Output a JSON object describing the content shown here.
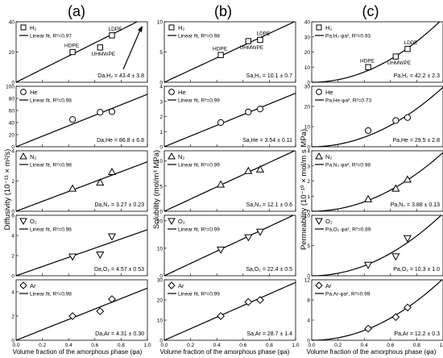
{
  "figure": {
    "column_labels": [
      "(a)",
      "(b)",
      "(c)"
    ],
    "ylabels": [
      "Diffusivity (10⁻¹¹ × m²/s)",
      "Solubility (mol/m³ MPa)",
      "Permeability (10⁻¹⁰ × mol/m s MPa)"
    ],
    "xlabel": "Volume fraction of the amorphous phase (φa)"
  },
  "chart_data": [
    {
      "type": "scatter",
      "column": 0,
      "row": 0,
      "gas": "H₂",
      "fit_label": "Linear fit, R²=0.97",
      "fit_kind": "linear",
      "ylim": [
        0,
        40
      ],
      "yticks": [
        0,
        20,
        40
      ],
      "x": [
        0.43,
        0.64,
        0.73
      ],
      "y": [
        20,
        23,
        31
      ],
      "slope": 43.4,
      "annotation": "Da,H₂ = 43.4 ± 3.8",
      "point_labels": [
        "HDPE",
        "UHMWPE",
        "LDPE"
      ],
      "marker": "square",
      "arrow": true
    },
    {
      "type": "scatter",
      "column": 0,
      "row": 1,
      "gas": "He",
      "fit_label": "Linear fit, R²=0.98",
      "fit_kind": "linear",
      "ylim": [
        0,
        100
      ],
      "yticks": [
        0,
        20,
        40,
        60,
        80,
        100
      ],
      "x": [
        0.43,
        0.64,
        0.73
      ],
      "y": [
        45,
        57,
        58
      ],
      "slope": 86.8,
      "annotation": "Da,He = 86.8 ± 6.8",
      "marker": "circle"
    },
    {
      "type": "scatter",
      "column": 0,
      "row": 2,
      "gas": "N₂",
      "fit_label": "Linear fit, R²=0.98",
      "fit_kind": "linear",
      "ylim": [
        0,
        4
      ],
      "yticks": [
        0,
        2,
        4
      ],
      "x": [
        0.43,
        0.64,
        0.73
      ],
      "y": [
        1.5,
        1.9,
        2.6
      ],
      "slope": 3.27,
      "annotation": "Da,N₂ = 3.27 ± 0.23",
      "marker": "triangle"
    },
    {
      "type": "scatter",
      "column": 0,
      "row": 3,
      "gas": "O₂",
      "fit_label": "Linear fit, R²=0.96",
      "fit_kind": "linear",
      "ylim": [
        0,
        6
      ],
      "yticks": [
        0,
        2,
        4,
        6
      ],
      "x": [
        0.43,
        0.64,
        0.73
      ],
      "y": [
        1.9,
        2.1,
        3.9
      ],
      "slope": 4.57,
      "annotation": "Da,O₂ = 4.57 ± 0.53",
      "marker": "triangle-down"
    },
    {
      "type": "scatter",
      "column": 0,
      "row": 4,
      "gas": "Ar",
      "fit_label": "Linear fit, R²=0.98",
      "fit_kind": "linear",
      "ylim": [
        0,
        5
      ],
      "yticks": [
        0,
        2,
        4
      ],
      "x": [
        0.43,
        0.64,
        0.73
      ],
      "y": [
        2.0,
        2.4,
        3.4
      ],
      "slope": 4.31,
      "annotation": "Da,Ar = 4.31 ± 0.30",
      "marker": "diamond"
    },
    {
      "type": "scatter",
      "column": 1,
      "row": 0,
      "gas": "H₂",
      "fit_label": "Linear fit, R²=0.98",
      "fit_kind": "linear",
      "ylim": [
        0,
        10
      ],
      "yticks": [
        0,
        5,
        10
      ],
      "x": [
        0.43,
        0.64,
        0.73
      ],
      "y": [
        4.5,
        6.8,
        7.0
      ],
      "slope": 10.1,
      "annotation": "Sa,H₂ = 10.1 ± 0.7",
      "point_labels": [
        "HDPE",
        "UHMWPE",
        "LDPE"
      ],
      "marker": "square"
    },
    {
      "type": "scatter",
      "column": 1,
      "row": 1,
      "gas": "He",
      "fit_label": "Linear fit, R²=0.99",
      "fit_kind": "linear",
      "ylim": [
        0,
        4
      ],
      "yticks": [
        0,
        1,
        2,
        3,
        4
      ],
      "x": [
        0.43,
        0.64,
        0.73
      ],
      "y": [
        1.6,
        2.3,
        2.5
      ],
      "slope": 3.54,
      "annotation": "Sa,He = 3.54 ± 0.11",
      "marker": "circle"
    },
    {
      "type": "scatter",
      "column": 1,
      "row": 2,
      "gas": "N₂",
      "fit_label": "Linear fit, R²=0.99",
      "fit_kind": "linear",
      "ylim": [
        0,
        12
      ],
      "yticks": [
        0,
        5,
        10
      ],
      "x": [
        0.43,
        0.64,
        0.73
      ],
      "y": [
        5.3,
        8.0,
        8.3
      ],
      "slope": 12.1,
      "annotation": "Sa,N₂ = 12.1 ± 0.6",
      "marker": "triangle"
    },
    {
      "type": "scatter",
      "column": 1,
      "row": 3,
      "gas": "O₂",
      "fit_label": "Linear fit, R²=0.99",
      "fit_kind": "linear",
      "ylim": [
        0,
        22
      ],
      "yticks": [
        0,
        10,
        20
      ],
      "x": [
        0.43,
        0.64,
        0.73
      ],
      "y": [
        9.5,
        14,
        16
      ],
      "slope": 22.4,
      "annotation": "Sa,O₂ = 22.4 ± 0.5",
      "marker": "triangle-down"
    },
    {
      "type": "scatter",
      "column": 1,
      "row": 4,
      "gas": "Ar",
      "fit_label": "Linear fit, R²=0.99",
      "fit_kind": "linear",
      "ylim": [
        0,
        30
      ],
      "yticks": [
        0,
        10,
        20,
        30
      ],
      "x": [
        0.43,
        0.64,
        0.73
      ],
      "y": [
        12,
        19,
        20
      ],
      "slope": 28.7,
      "annotation": "Sa,Ar = 28.7 ± 1.4",
      "marker": "diamond"
    },
    {
      "type": "scatter",
      "column": 2,
      "row": 0,
      "gas": "H₂",
      "fit_label": "Pa,H₂·φa², R²=0.93",
      "fit_kind": "quadratic",
      "ylim": [
        0,
        40
      ],
      "yticks": [
        0,
        10,
        20,
        30,
        40
      ],
      "x": [
        0.43,
        0.64,
        0.73
      ],
      "y": [
        10,
        17,
        22
      ],
      "slope": 42.2,
      "annotation": "Pa,H₂ = 42.2 ± 2.3",
      "point_labels": [
        "HDPE",
        "UHMWPE",
        "LDPE"
      ],
      "marker": "square"
    },
    {
      "type": "scatter",
      "column": 2,
      "row": 1,
      "gas": "He",
      "fit_label": "Pa,He·φa², R²=0.73",
      "fit_kind": "quadratic",
      "ylim": [
        0,
        30
      ],
      "yticks": [
        0,
        10,
        20,
        30
      ],
      "x": [
        0.43,
        0.64,
        0.73
      ],
      "y": [
        8,
        13,
        14.5
      ],
      "slope": 29.5,
      "annotation": "Pa,He = 29.5 ± 2.8",
      "marker": "circle"
    },
    {
      "type": "scatter",
      "column": 2,
      "row": 2,
      "gas": "N₂",
      "fit_label": "Pa,N₂·φa², R²=0.98",
      "fit_kind": "quadratic",
      "ylim": [
        0,
        4
      ],
      "yticks": [
        0,
        1,
        2,
        3,
        4
      ],
      "x": [
        0.43,
        0.64,
        0.73
      ],
      "y": [
        0.8,
        1.5,
        2.1
      ],
      "slope": 3.88,
      "annotation": "Pa,N₂ = 3.88 ± 0.13",
      "marker": "triangle"
    },
    {
      "type": "scatter",
      "column": 2,
      "row": 3,
      "gas": "O₂",
      "fit_label": "Pa,O₂·φa², R²=0.89",
      "fit_kind": "quadratic",
      "ylim": [
        0,
        10
      ],
      "yticks": [
        0,
        5,
        10
      ],
      "x": [
        0.43,
        0.64,
        0.73
      ],
      "y": [
        1.8,
        3.2,
        6.2
      ],
      "slope": 10.3,
      "annotation": "Pa,O₂ = 10.3 ± 1.0",
      "marker": "triangle-down"
    },
    {
      "type": "scatter",
      "column": 2,
      "row": 4,
      "gas": "Ar",
      "fit_label": "Pa,Ar·φa², R²=0.99",
      "fit_kind": "quadratic",
      "ylim": [
        0,
        12
      ],
      "yticks": [
        0,
        4,
        8,
        12
      ],
      "x": [
        0.43,
        0.64,
        0.73
      ],
      "y": [
        2.3,
        4.6,
        6.5
      ],
      "slope": 12.2,
      "annotation": "Pa,Ar = 12.2 ± 0.3",
      "marker": "diamond"
    }
  ],
  "xaxis": {
    "xlim": [
      0,
      1
    ],
    "xticks": [
      0.0,
      0.2,
      0.4,
      0.6,
      0.8,
      1.0
    ],
    "tick_labels": [
      "0.0",
      "0.2",
      "0.4",
      "0.6",
      "0.8",
      "1.0"
    ]
  }
}
